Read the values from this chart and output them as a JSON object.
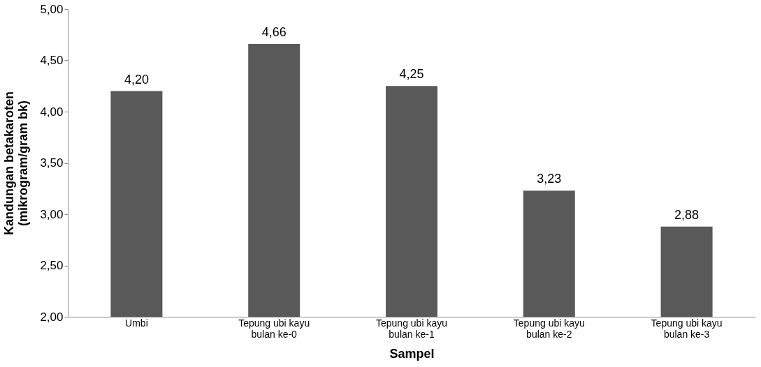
{
  "chart_data": {
    "type": "bar",
    "xlabel": "Sampel",
    "ylabel": "Kandungan betakaroten\n(mikrogram/gram bk)",
    "categories": [
      "Umbi",
      "Tepung ubi kayu\nbulan ke-0",
      "Tepung ubi kayu\nbulan ke-1",
      "Tepung ubi kayu\nbulan ke-2",
      "Tepung ubi kayu\nbulan ke-3"
    ],
    "values": [
      4.2,
      4.66,
      4.25,
      3.23,
      2.88
    ],
    "value_labels": [
      "4,20",
      "4,66",
      "4,25",
      "3,23",
      "2,88"
    ],
    "color": "#595959",
    "ylim": [
      2,
      5
    ],
    "yticks": [
      {
        "value": 2,
        "label": "2,00"
      },
      {
        "value": 2.5,
        "label": "2,50"
      },
      {
        "value": 3,
        "label": "3,00"
      },
      {
        "value": 3.5,
        "label": "3,50"
      },
      {
        "value": 4,
        "label": "4,00"
      },
      {
        "value": 4.5,
        "label": "4,50"
      },
      {
        "value": 5,
        "label": "5,00"
      }
    ],
    "grid": false
  }
}
